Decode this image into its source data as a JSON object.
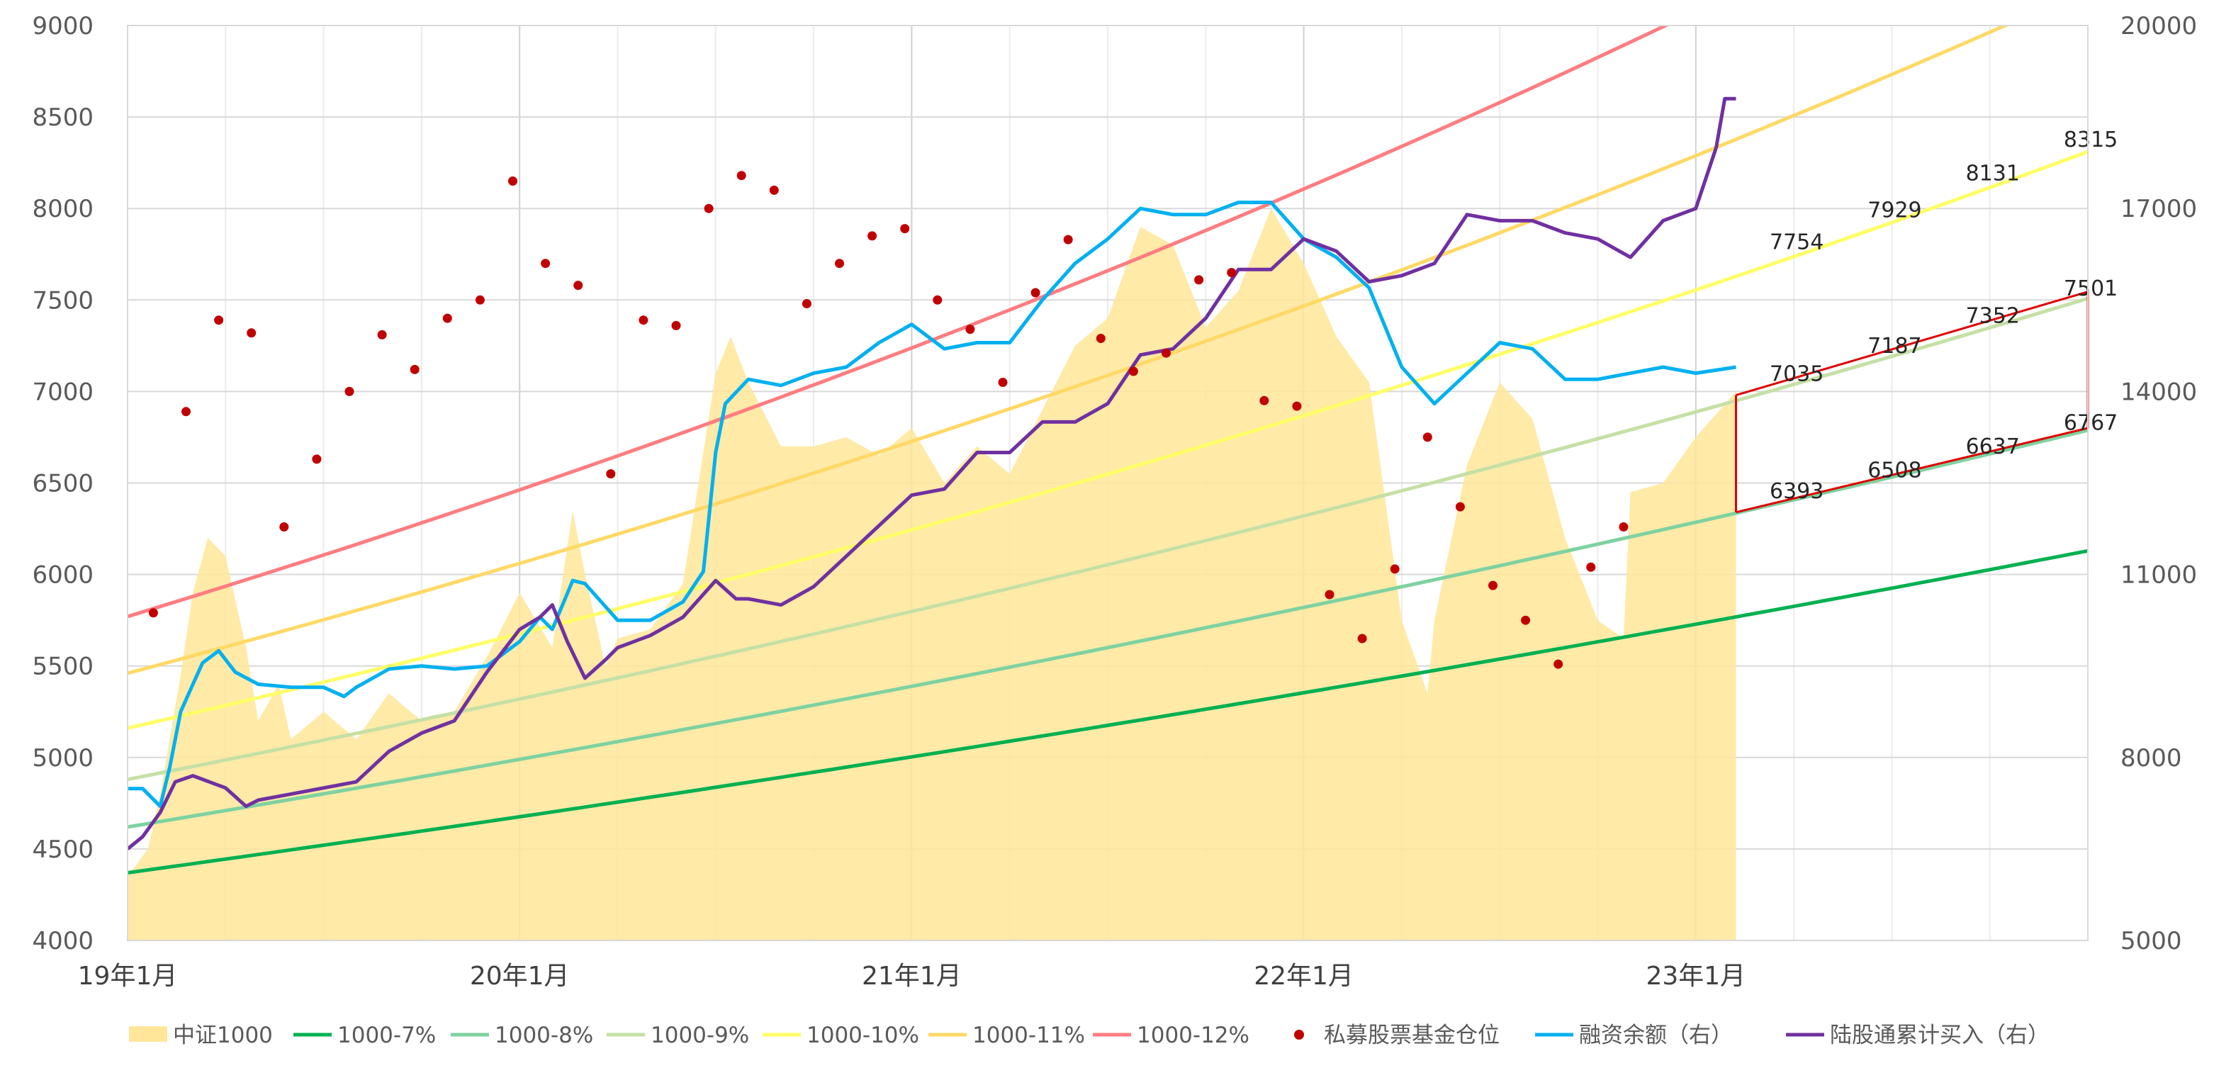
{
  "chart_data": {
    "type": "line",
    "title": "",
    "x_ticks": [
      "19年1月",
      "20年1月",
      "21年1月",
      "22年1月",
      "23年1月"
    ],
    "x_range": [
      "2019-01",
      "2024-01"
    ],
    "y_left": {
      "min": 4000,
      "max": 9000,
      "ticks": [
        4000,
        4500,
        5000,
        5500,
        6000,
        6500,
        7000,
        7500,
        8000,
        8500,
        9000
      ]
    },
    "y_right": {
      "min": 5000,
      "max": 20000,
      "ticks": [
        5000,
        8000,
        11000,
        14000,
        17000,
        20000
      ]
    },
    "legend_position": "bottom",
    "area_series": {
      "name": "中证1000",
      "color": "#FFE699",
      "axis": "left",
      "points": [
        [
          "2019-01",
          4350
        ],
        [
          "2019-01-20",
          4500
        ],
        [
          "2019-02",
          4800
        ],
        [
          "2019-02-20",
          5450
        ],
        [
          "2019-03",
          5900
        ],
        [
          "2019-03-15",
          6200
        ],
        [
          "2019-04",
          6100
        ],
        [
          "2019-04-20",
          5600
        ],
        [
          "2019-05",
          5200
        ],
        [
          "2019-05-20",
          5400
        ],
        [
          "2019-06",
          5100
        ],
        [
          "2019-07",
          5250
        ],
        [
          "2019-08",
          5100
        ],
        [
          "2019-09",
          5350
        ],
        [
          "2019-10",
          5200
        ],
        [
          "2019-11",
          5250
        ],
        [
          "2019-12",
          5550
        ],
        [
          "2020-01",
          5900
        ],
        [
          "2020-02",
          5600
        ],
        [
          "2020-02-20",
          6350
        ],
        [
          "2020-03",
          6000
        ],
        [
          "2020-03-20",
          5500
        ],
        [
          "2020-04",
          5650
        ],
        [
          "2020-05",
          5700
        ],
        [
          "2020-06",
          5950
        ],
        [
          "2020-07",
          7100
        ],
        [
          "2020-07-15",
          7300
        ],
        [
          "2020-08",
          7050
        ],
        [
          "2020-09",
          6700
        ],
        [
          "2020-10",
          6700
        ],
        [
          "2020-11",
          6750
        ],
        [
          "2020-12",
          6650
        ],
        [
          "2021-01",
          6800
        ],
        [
          "2021-02",
          6500
        ],
        [
          "2021-03",
          6700
        ],
        [
          "2021-04",
          6550
        ],
        [
          "2021-05",
          6900
        ],
        [
          "2021-06",
          7250
        ],
        [
          "2021-07",
          7400
        ],
        [
          "2021-08",
          7900
        ],
        [
          "2021-09",
          7800
        ],
        [
          "2021-10",
          7350
        ],
        [
          "2021-11",
          7550
        ],
        [
          "2021-12",
          8000
        ],
        [
          "2022-01",
          7700
        ],
        [
          "2022-02",
          7300
        ],
        [
          "2022-03",
          7050
        ],
        [
          "2022-04",
          5750
        ],
        [
          "2022-04-25",
          5350
        ],
        [
          "2022-05",
          5750
        ],
        [
          "2022-06",
          6600
        ],
        [
          "2022-07",
          7050
        ],
        [
          "2022-08",
          6850
        ],
        [
          "2022-09",
          6200
        ],
        [
          "2022-10",
          5750
        ],
        [
          "2022-10-25",
          5650
        ],
        [
          "2022-11",
          6450
        ],
        [
          "2022-12",
          6500
        ],
        [
          "2023-01",
          6750
        ],
        [
          "2023-02-08",
          7000
        ]
      ]
    },
    "projection_lines": [
      {
        "name": "1000-7%",
        "color": "#00B050",
        "axis": "left",
        "start_value": 4370,
        "annual_growth": 0.07,
        "end": "2024-01"
      },
      {
        "name": "1000-8%",
        "color": "#7ED2A0",
        "axis": "left",
        "start_value": 4620,
        "annual_growth": 0.08,
        "end": "2024-01"
      },
      {
        "name": "1000-9%",
        "color": "#C5E0A5",
        "axis": "left",
        "start_value": 4880,
        "annual_growth": 0.09,
        "end": "2024-01"
      },
      {
        "name": "1000-10%",
        "color": "#FFFF66",
        "axis": "left",
        "start_value": 5160,
        "annual_growth": 0.1,
        "end": "2024-01"
      },
      {
        "name": "1000-11%",
        "color": "#FFD966",
        "axis": "left",
        "start_value": 5460,
        "annual_growth": 0.11,
        "end": "2024-01"
      },
      {
        "name": "1000-12%",
        "color": "#FF7C80",
        "axis": "left",
        "start_value": 5770,
        "annual_growth": 0.12,
        "end": "2024-01"
      }
    ],
    "scatter_series": {
      "name": "私募股票基金仓位",
      "color": "#C00000",
      "axis": "left",
      "points": [
        [
          "2019-01-25",
          5790
        ],
        [
          "2019-02-25",
          6890
        ],
        [
          "2019-03-25",
          7390
        ],
        [
          "2019-04-25",
          7320
        ],
        [
          "2019-05-25",
          6260
        ],
        [
          "2019-06-25",
          6630
        ],
        [
          "2019-07-25",
          7000
        ],
        [
          "2019-08-25",
          7310
        ],
        [
          "2019-09-25",
          7120
        ],
        [
          "2019-10-25",
          7400
        ],
        [
          "2019-11-25",
          7500
        ],
        [
          "2019-12-25",
          8150
        ],
        [
          "2020-01-25",
          7700
        ],
        [
          "2020-02-25",
          7580
        ],
        [
          "2020-03-25",
          6550
        ],
        [
          "2020-04-25",
          7390
        ],
        [
          "2020-05-25",
          7360
        ],
        [
          "2020-06-25",
          8000
        ],
        [
          "2020-07-25",
          8180
        ],
        [
          "2020-08-25",
          8100
        ],
        [
          "2020-09-25",
          7480
        ],
        [
          "2020-10-25",
          7700
        ],
        [
          "2020-11-25",
          7850
        ],
        [
          "2020-12-25",
          7890
        ],
        [
          "2021-01-25",
          7500
        ],
        [
          "2021-02-25",
          7340
        ],
        [
          "2021-03-25",
          7050
        ],
        [
          "2021-04-25",
          7540
        ],
        [
          "2021-05-25",
          7830
        ],
        [
          "2021-06-25",
          7290
        ],
        [
          "2021-07-25",
          7110
        ],
        [
          "2021-08-25",
          7210
        ],
        [
          "2021-09-25",
          7610
        ],
        [
          "2021-10-25",
          7650
        ],
        [
          "2021-11-25",
          6950
        ],
        [
          "2021-12-25",
          6920
        ],
        [
          "2022-01-25",
          5890
        ],
        [
          "2022-02-25",
          5650
        ],
        [
          "2022-03-25",
          6030
        ],
        [
          "2022-04-25",
          6750
        ],
        [
          "2022-05-25",
          6370
        ],
        [
          "2022-06-25",
          5940
        ],
        [
          "2022-07-25",
          5750
        ],
        [
          "2022-08-25",
          5510
        ],
        [
          "2022-09-25",
          6040
        ],
        [
          "2022-10-25",
          6260
        ]
      ]
    },
    "line_series": [
      {
        "name": "融资余额（右）",
        "color": "#00B0F0",
        "axis": "right",
        "points": [
          [
            "2019-01",
            7490
          ],
          [
            "2019-01-15",
            7490
          ],
          [
            "2019-02",
            7200
          ],
          [
            "2019-02-10",
            7850
          ],
          [
            "2019-02-20",
            8750
          ],
          [
            "2019-03",
            9200
          ],
          [
            "2019-03-10",
            9550
          ],
          [
            "2019-03-25",
            9750
          ],
          [
            "2019-04-10",
            9400
          ],
          [
            "2019-05",
            9200
          ],
          [
            "2019-06",
            9150
          ],
          [
            "2019-07",
            9150
          ],
          [
            "2019-07-20",
            9000
          ],
          [
            "2019-08",
            9150
          ],
          [
            "2019-09",
            9450
          ],
          [
            "2019-10",
            9500
          ],
          [
            "2019-11",
            9450
          ],
          [
            "2019-12",
            9500
          ],
          [
            "2020-01",
            9900
          ],
          [
            "2020-01-20",
            10300
          ],
          [
            "2020-02",
            10100
          ],
          [
            "2020-02-20",
            10900
          ],
          [
            "2020-03",
            10850
          ],
          [
            "2020-04",
            10250
          ],
          [
            "2020-05",
            10250
          ],
          [
            "2020-06",
            10550
          ],
          [
            "2020-06-20",
            11050
          ],
          [
            "2020-07",
            13000
          ],
          [
            "2020-07-10",
            13800
          ],
          [
            "2020-08",
            14200
          ],
          [
            "2020-09",
            14100
          ],
          [
            "2020-10",
            14300
          ],
          [
            "2020-11",
            14400
          ],
          [
            "2020-12",
            14800
          ],
          [
            "2021-01",
            15100
          ],
          [
            "2021-02",
            14700
          ],
          [
            "2021-03",
            14800
          ],
          [
            "2021-04",
            14800
          ],
          [
            "2021-05",
            15500
          ],
          [
            "2021-06",
            16100
          ],
          [
            "2021-07",
            16500
          ],
          [
            "2021-08",
            17000
          ],
          [
            "2021-09",
            16900
          ],
          [
            "2021-10",
            16900
          ],
          [
            "2021-11",
            17100
          ],
          [
            "2021-12",
            17100
          ],
          [
            "2022-01",
            16500
          ],
          [
            "2022-02",
            16200
          ],
          [
            "2022-03",
            15700
          ],
          [
            "2022-04",
            14400
          ],
          [
            "2022-05",
            13800
          ],
          [
            "2022-06",
            14300
          ],
          [
            "2022-07",
            14800
          ],
          [
            "2022-08",
            14700
          ],
          [
            "2022-09",
            14200
          ],
          [
            "2022-10",
            14200
          ],
          [
            "2022-11",
            14300
          ],
          [
            "2022-12",
            14400
          ],
          [
            "2023-01",
            14300
          ],
          [
            "2023-02-08",
            14400
          ]
        ]
      },
      {
        "name": "陆股通累计买入（右）",
        "color": "#7030A0",
        "axis": "right",
        "points": [
          [
            "2019-01",
            6500
          ],
          [
            "2019-01-15",
            6700
          ],
          [
            "2019-02",
            7100
          ],
          [
            "2019-02-15",
            7600
          ],
          [
            "2019-03",
            7700
          ],
          [
            "2019-04",
            7500
          ],
          [
            "2019-04-20",
            7200
          ],
          [
            "2019-05",
            7300
          ],
          [
            "2019-06",
            7400
          ],
          [
            "2019-07",
            7500
          ],
          [
            "2019-08",
            7600
          ],
          [
            "2019-09",
            8100
          ],
          [
            "2019-10",
            8400
          ],
          [
            "2019-11",
            8600
          ],
          [
            "2019-12",
            9400
          ],
          [
            "2020-01",
            10100
          ],
          [
            "2020-01-20",
            10300
          ],
          [
            "2020-02",
            10500
          ],
          [
            "2020-02-15",
            9900
          ],
          [
            "2020-03",
            9300
          ],
          [
            "2020-03-20",
            9600
          ],
          [
            "2020-04",
            9800
          ],
          [
            "2020-05",
            10000
          ],
          [
            "2020-06",
            10300
          ],
          [
            "2020-07",
            10900
          ],
          [
            "2020-07-20",
            10600
          ],
          [
            "2020-08",
            10600
          ],
          [
            "2020-09",
            10500
          ],
          [
            "2020-10",
            10800
          ],
          [
            "2020-11",
            11300
          ],
          [
            "2020-12",
            11800
          ],
          [
            "2021-01",
            12300
          ],
          [
            "2021-02",
            12400
          ],
          [
            "2021-03",
            13000
          ],
          [
            "2021-04",
            13000
          ],
          [
            "2021-05",
            13500
          ],
          [
            "2021-06",
            13500
          ],
          [
            "2021-07",
            13800
          ],
          [
            "2021-08",
            14600
          ],
          [
            "2021-09",
            14700
          ],
          [
            "2021-10",
            15200
          ],
          [
            "2021-11",
            16000
          ],
          [
            "2021-12",
            16000
          ],
          [
            "2022-01",
            16500
          ],
          [
            "2022-02",
            16300
          ],
          [
            "2022-03",
            15800
          ],
          [
            "2022-04",
            15900
          ],
          [
            "2022-05",
            16100
          ],
          [
            "2022-06",
            16900
          ],
          [
            "2022-07",
            16800
          ],
          [
            "2022-08",
            16800
          ],
          [
            "2022-09",
            16600
          ],
          [
            "2022-10",
            16500
          ],
          [
            "2022-11",
            16200
          ],
          [
            "2022-12",
            16800
          ],
          [
            "2023-01",
            17000
          ],
          [
            "2023-01-20",
            18000
          ],
          [
            "2023-01-28",
            18800
          ],
          [
            "2023-02-08",
            18800
          ]
        ]
      }
    ],
    "projection_labels": [
      {
        "date": "2023-03",
        "value": 7035,
        "text": "7035"
      },
      {
        "date": "2023-06",
        "value": 7187,
        "text": "7187"
      },
      {
        "date": "2023-09",
        "value": 7352,
        "text": "7352"
      },
      {
        "date": "2023-12",
        "value": 7501,
        "text": "7501"
      },
      {
        "date": "2023-03",
        "value": 6393,
        "text": "6393"
      },
      {
        "date": "2023-06",
        "value": 6508,
        "text": "6508"
      },
      {
        "date": "2023-09",
        "value": 6637,
        "text": "6637"
      },
      {
        "date": "2023-12",
        "value": 6767,
        "text": "6767"
      },
      {
        "date": "2023-03",
        "value": 7754,
        "text": "7754"
      },
      {
        "date": "2023-06",
        "value": 7929,
        "text": "7929"
      },
      {
        "date": "2023-09",
        "value": 8131,
        "text": "8131"
      },
      {
        "date": "2023-12",
        "value": 8315,
        "text": "8315"
      }
    ],
    "highlight_band": {
      "color": "#E00000",
      "from": "2023-02-08",
      "to": "2024-01",
      "upper": [
        6980,
        7545
      ],
      "lower": [
        6340,
        6800
      ]
    }
  }
}
